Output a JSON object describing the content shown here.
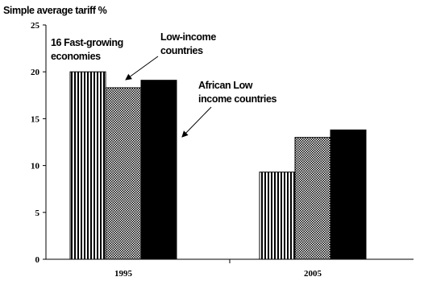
{
  "chart_data": {
    "type": "bar",
    "ylabel": "Simple average tariff %",
    "xlabel": "",
    "ylim": [
      0,
      25
    ],
    "yticks": [
      0,
      5,
      10,
      15,
      20,
      25
    ],
    "grid": false,
    "categories": [
      "1995",
      "2005"
    ],
    "series": [
      {
        "name": "16 Fast-growing economies",
        "values": [
          20.0,
          9.3
        ],
        "fill": "vertical-stripes"
      },
      {
        "name": "Low-income countries",
        "values": [
          18.3,
          13.0
        ],
        "fill": "dots"
      },
      {
        "name": "African Low income countries",
        "values": [
          19.1,
          13.8
        ],
        "fill": "solid-black"
      }
    ],
    "annotations": [
      {
        "lines": [
          "16 Fast-growing",
          "economies"
        ]
      },
      {
        "lines": [
          "Low-income",
          "countries"
        ]
      },
      {
        "lines": [
          "African Low",
          "income countries"
        ]
      }
    ]
  }
}
